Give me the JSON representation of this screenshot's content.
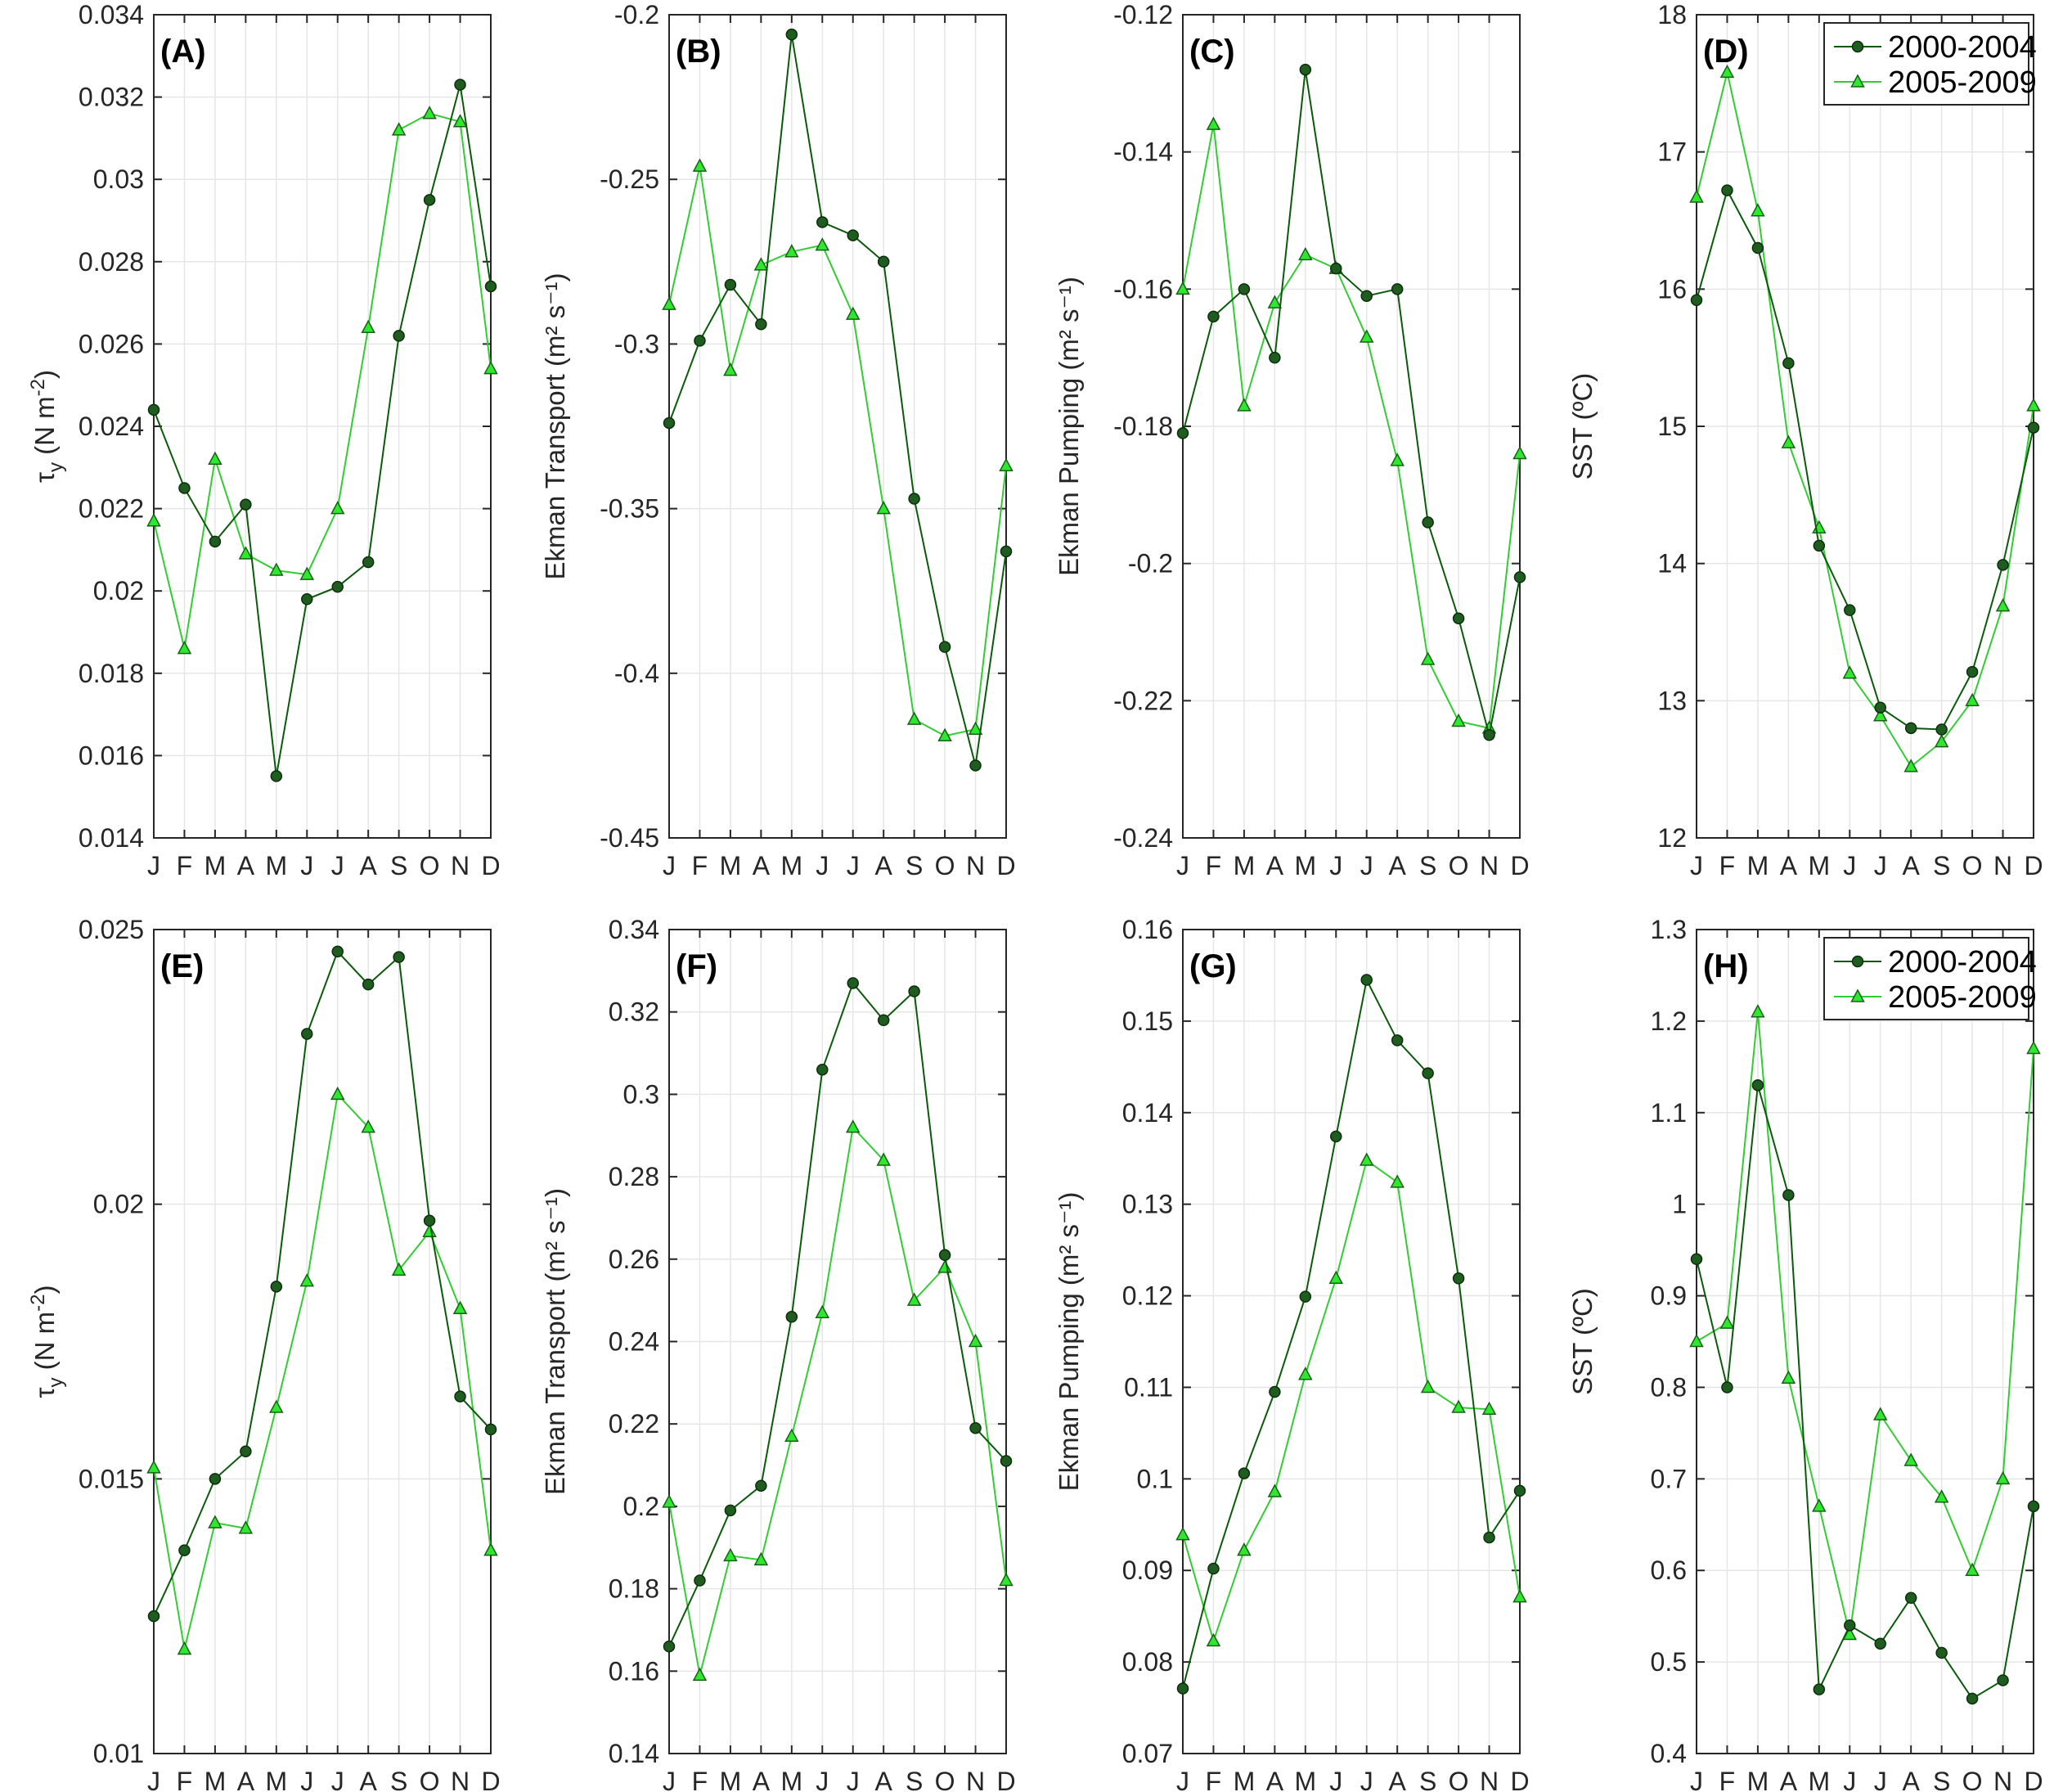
{
  "colors": {
    "dark": "#0b5a0b",
    "dark_marker": "#1f5c1f",
    "light": "#33cc33",
    "light_marker": "#2ee82e",
    "grid": "#e6e6e6",
    "axis": "#262626"
  },
  "months": [
    "J",
    "F",
    "M",
    "A",
    "M",
    "J",
    "J",
    "A",
    "S",
    "O",
    "N",
    "D"
  ],
  "legend": [
    "2000-2004",
    "2005-2009"
  ],
  "chart_data": [
    {
      "type": "line",
      "label": "(A)",
      "ylabel": "τy (N m⁻²)",
      "ylabel_main": "τ",
      "ylabel_sub": "y",
      "ylabel_unit": " (N m",
      "ylabel_exp": "-2",
      "ylabel_close": ")",
      "ylim": [
        0.014,
        0.034
      ],
      "yticks": [
        "0.014",
        "0.016",
        "0.018",
        "0.02",
        "0.022",
        "0.024",
        "0.026",
        "0.028",
        "0.03",
        "0.032",
        "0.034"
      ],
      "series": [
        {
          "name": "2000-2004",
          "values": [
            0.0244,
            0.0225,
            0.0212,
            0.0221,
            0.0155,
            0.0198,
            0.0201,
            0.0207,
            0.0262,
            0.0295,
            0.0323,
            0.0274
          ]
        },
        {
          "name": "2005-2009",
          "values": [
            0.0217,
            0.0186,
            0.0232,
            0.0209,
            0.0205,
            0.0204,
            0.022,
            0.0264,
            0.0312,
            0.0316,
            0.0314,
            0.0254
          ]
        }
      ]
    },
    {
      "type": "line",
      "label": "(B)",
      "ylabel": "Ekman Transport (m² s⁻¹)",
      "ylim": [
        -0.45,
        -0.2
      ],
      "yticks": [
        "-0.45",
        "-0.4",
        "-0.35",
        "-0.3",
        "-0.25",
        "-0.2"
      ],
      "series": [
        {
          "name": "2000-2004",
          "values": [
            -0.324,
            -0.299,
            -0.282,
            -0.294,
            -0.206,
            -0.263,
            -0.267,
            -0.275,
            -0.347,
            -0.392,
            -0.428,
            -0.363
          ]
        },
        {
          "name": "2005-2009",
          "values": [
            -0.288,
            -0.246,
            -0.308,
            -0.276,
            -0.272,
            -0.27,
            -0.291,
            -0.35,
            -0.414,
            -0.419,
            -0.417,
            -0.337
          ]
        }
      ]
    },
    {
      "type": "line",
      "label": "(C)",
      "ylabel": "Ekman Pumping (m² s⁻¹)",
      "ylim": [
        -0.24,
        -0.12
      ],
      "yticks": [
        "-0.24",
        "-0.22",
        "-0.2",
        "-0.18",
        "-0.16",
        "-0.14",
        "-0.12"
      ],
      "series": [
        {
          "name": "2000-2004",
          "values": [
            -0.181,
            -0.164,
            -0.16,
            -0.17,
            -0.128,
            -0.157,
            -0.161,
            -0.16,
            -0.194,
            -0.208,
            -0.225,
            -0.202
          ]
        },
        {
          "name": "2005-2009",
          "values": [
            -0.16,
            -0.136,
            -0.177,
            -0.162,
            -0.155,
            -0.157,
            -0.167,
            -0.185,
            -0.214,
            -0.223,
            -0.224,
            -0.184
          ]
        }
      ]
    },
    {
      "type": "line",
      "label": "(D)",
      "ylabel": "SST (ºC)",
      "ylim": [
        12,
        18
      ],
      "yticks": [
        "12",
        "13",
        "14",
        "15",
        "16",
        "17",
        "18"
      ],
      "legend": true,
      "series": [
        {
          "name": "2000-2004",
          "values": [
            15.92,
            16.72,
            16.3,
            15.46,
            14.13,
            13.66,
            12.95,
            12.8,
            12.79,
            13.21,
            13.99,
            14.99
          ]
        },
        {
          "name": "2005-2009",
          "values": [
            16.67,
            17.58,
            16.57,
            14.88,
            14.26,
            13.2,
            12.89,
            12.52,
            12.7,
            13.0,
            13.69,
            15.15
          ]
        }
      ]
    },
    {
      "type": "line",
      "label": "(E)",
      "ylabel": "τy (N m⁻²)",
      "ylabel_main": "τ",
      "ylabel_sub": "y",
      "ylabel_unit": " (N m",
      "ylabel_exp": "-2",
      "ylabel_close": ")",
      "ylim": [
        0.01,
        0.025
      ],
      "yticks": [
        "0.01",
        "0.015",
        "0.02",
        "0.025"
      ],
      "series": [
        {
          "name": "2000-2004",
          "values": [
            0.0125,
            0.0137,
            0.015,
            0.0155,
            0.0185,
            0.0231,
            0.0246,
            0.024,
            0.0245,
            0.0197,
            0.0165,
            0.0159
          ]
        },
        {
          "name": "2005-2009",
          "values": [
            0.0152,
            0.0119,
            0.0142,
            0.0141,
            0.0163,
            0.0186,
            0.022,
            0.0214,
            0.0188,
            0.0195,
            0.0181,
            0.0137
          ]
        }
      ]
    },
    {
      "type": "line",
      "label": "(F)",
      "ylabel": "Ekman Transport (m² s⁻¹)",
      "ylim": [
        0.14,
        0.34
      ],
      "yticks": [
        "0.14",
        "0.16",
        "0.18",
        "0.2",
        "0.22",
        "0.24",
        "0.26",
        "0.28",
        "0.3",
        "0.32",
        "0.34"
      ],
      "series": [
        {
          "name": "2000-2004",
          "values": [
            0.166,
            0.182,
            0.199,
            0.205,
            0.246,
            0.306,
            0.327,
            0.318,
            0.325,
            0.261,
            0.219,
            0.211
          ]
        },
        {
          "name": "2005-2009",
          "values": [
            0.201,
            0.159,
            0.188,
            0.187,
            0.217,
            0.247,
            0.292,
            0.284,
            0.25,
            0.258,
            0.24,
            0.182
          ]
        }
      ]
    },
    {
      "type": "line",
      "label": "(G)",
      "ylabel": "Ekman Pumping (m² s⁻¹)",
      "ylim": [
        0.07,
        0.16
      ],
      "yticks": [
        "0.07",
        "0.08",
        "0.09",
        "0.1",
        "0.11",
        "0.12",
        "0.13",
        "0.14",
        "0.15",
        "0.16"
      ],
      "series": [
        {
          "name": "2000-2004",
          "values": [
            0.0771,
            0.0902,
            0.1006,
            0.1095,
            0.1199,
            0.1374,
            0.1545,
            0.1479,
            0.1443,
            0.1219,
            0.0936,
            0.0987
          ]
        },
        {
          "name": "2005-2009",
          "values": [
            0.0939,
            0.0823,
            0.0922,
            0.0986,
            0.1114,
            0.1219,
            0.1348,
            0.1324,
            0.11,
            0.1078,
            0.1076,
            0.0871
          ]
        }
      ]
    },
    {
      "type": "line",
      "label": "(H)",
      "ylabel": "SST (ºC)",
      "ylim": [
        0.4,
        1.3
      ],
      "yticks": [
        "0.4",
        "0.5",
        "0.6",
        "0.7",
        "0.8",
        "0.9",
        "1",
        "1.1",
        "1.2",
        "1.3"
      ],
      "legend": true,
      "series": [
        {
          "name": "2000-2004",
          "values": [
            0.94,
            0.8,
            1.13,
            1.01,
            0.47,
            0.54,
            0.52,
            0.57,
            0.51,
            0.46,
            0.48,
            0.67
          ]
        },
        {
          "name": "2005-2009",
          "values": [
            0.85,
            0.87,
            1.21,
            0.81,
            0.67,
            0.53,
            0.77,
            0.72,
            0.68,
            0.6,
            0.7,
            1.17
          ]
        }
      ]
    }
  ]
}
